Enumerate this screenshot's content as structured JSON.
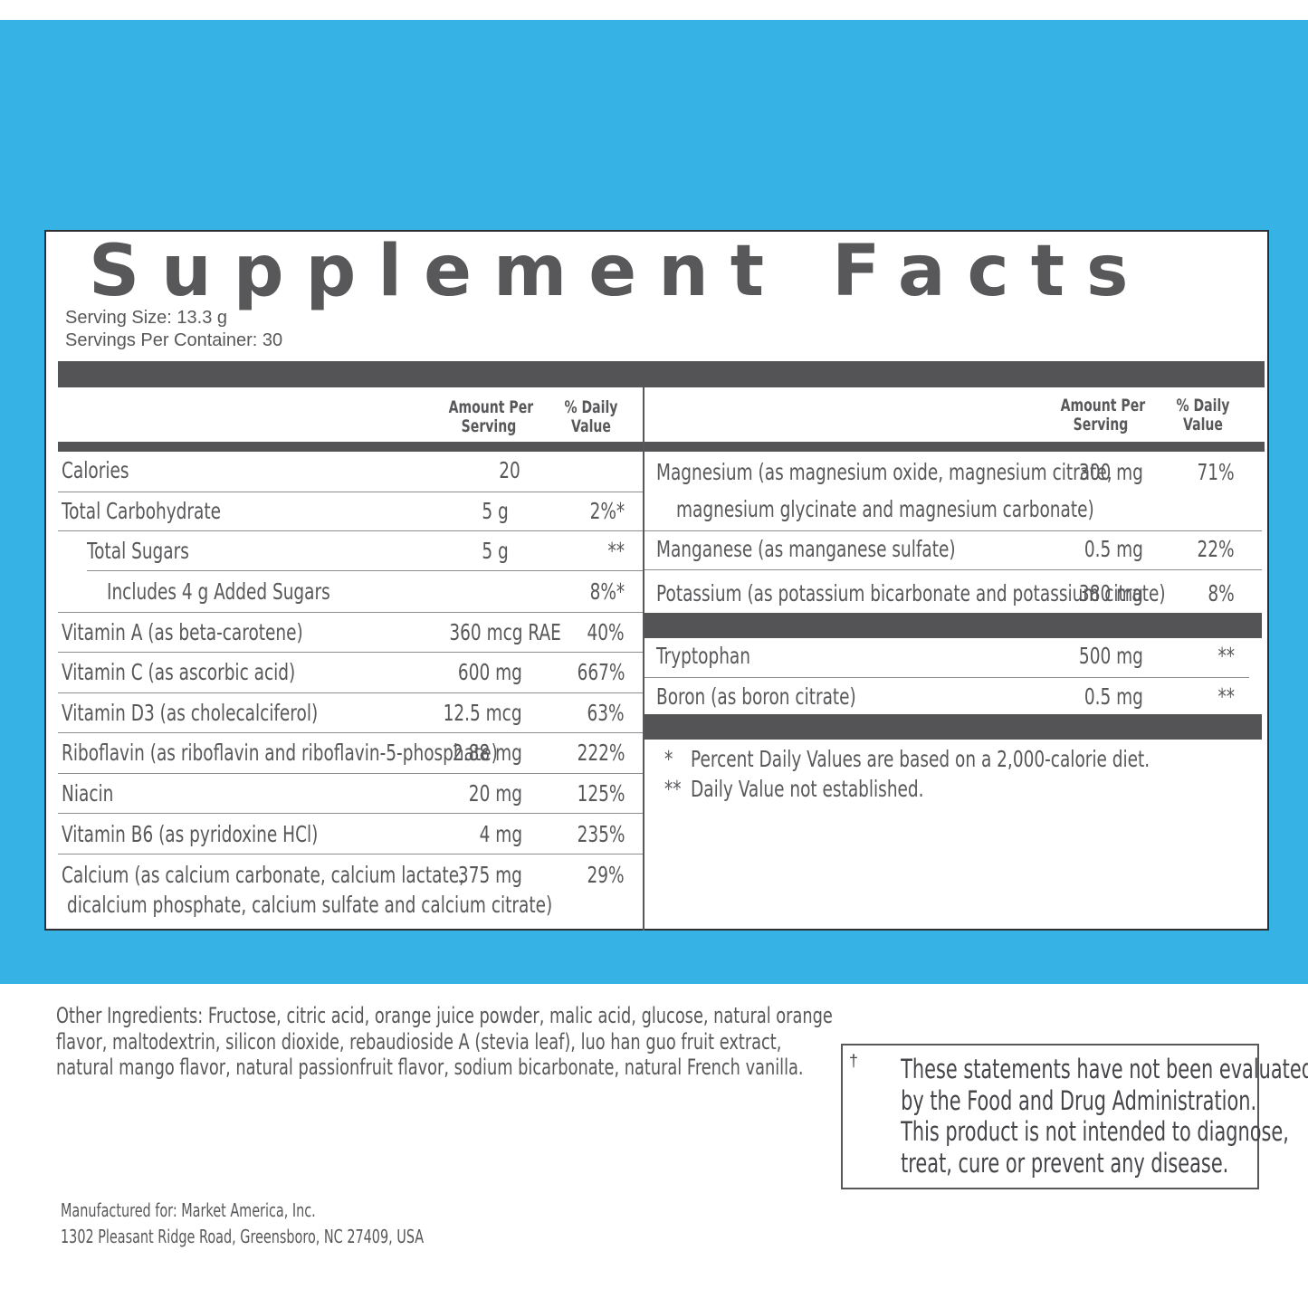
{
  "title": "Supplement Facts",
  "serving_size": "Serving Size: 13.3 g",
  "servings_per_container": "Servings Per Container: 30",
  "column_headers": {
    "amount_line1": "Amount Per",
    "amount_line2": "Serving",
    "dv_line1": "% Daily",
    "dv_line2": "Value"
  },
  "left_rows": [
    {
      "name": "Calories",
      "amount": "20",
      "dv": ""
    },
    {
      "name": "Total Carbohydrate",
      "amount": "5 g",
      "dv": "2%*"
    },
    {
      "name": "Total Sugars",
      "amount": "5 g",
      "dv": "**"
    },
    {
      "name": "Includes 4 g Added Sugars",
      "amount": "",
      "dv": "8%*"
    },
    {
      "name": "Vitamin A (as beta-carotene)",
      "amount": "360 mcg RAE",
      "dv": "40%"
    },
    {
      "name": "Vitamin C (as ascorbic acid)",
      "amount": "600 mg",
      "dv": "667%"
    },
    {
      "name": "Vitamin D3 (as cholecalciferol)",
      "amount": "12.5 mcg",
      "dv": "63%"
    },
    {
      "name": "Riboflavin (as riboflavin and riboflavin-5-phosphate)",
      "amount": "2.88 mg",
      "dv": "222%"
    },
    {
      "name": "Niacin",
      "amount": "20 mg",
      "dv": "125%"
    },
    {
      "name": "Vitamin B6 (as pyridoxine HCl)",
      "amount": "4 mg",
      "dv": "235%"
    },
    {
      "name": "Calcium (as calcium carbonate, calcium lactate,",
      "name2": "dicalcium phosphate, calcium sulfate and calcium citrate)",
      "amount": "375 mg",
      "dv": "29%"
    }
  ],
  "right_rows": [
    {
      "name": "Magnesium (as magnesium oxide, magnesium citrate,",
      "name2": "magnesium glycinate and magnesium carbonate)",
      "amount": "300 mg",
      "dv": "71%"
    },
    {
      "name": "Manganese (as manganese sulfate)",
      "amount": "0.5 mg",
      "dv": "22%"
    },
    {
      "name": "Potassium (as potassium bicarbonate and potassium citrate)",
      "amount": "380 mg",
      "dv": "8%"
    },
    {
      "name": "Tryptophan",
      "amount": "500 mg",
      "dv": "**"
    },
    {
      "name": "Boron (as boron citrate)",
      "amount": "0.5 mg",
      "dv": "**"
    }
  ],
  "footnotes": {
    "f1_mark": "*",
    "f1_text": "Percent Daily Values are based on a 2,000-calorie diet.",
    "f2_mark": "**",
    "f2_text": "Daily Value not established."
  },
  "other_ingredients": [
    "Other Ingredients: Fructose, citric acid, orange juice powder, malic acid, glucose, natural orange",
    "flavor, maltodextrin, silicon dioxide, rebaudioside A (stevia leaf), luo han guo fruit extract,",
    "natural mango flavor, natural passionfruit flavor, sodium bicarbonate, natural French vanilla."
  ],
  "disclaimer": {
    "dagger": "†",
    "lines": [
      "These statements have not been evaluated",
      "by the Food and Drug Administration.",
      "This product is not intended to diagnose,",
      "treat, cure or prevent any disease."
    ]
  },
  "manufacturer": {
    "line1": "Manufactured for: Market America, Inc.",
    "line2": "1302 Pleasant Ridge Road, Greensboro, NC 27409, USA"
  },
  "colors": {
    "background_blue": "#36b2e5",
    "bar_gray": "#545457",
    "text_gray": "#58585b"
  }
}
